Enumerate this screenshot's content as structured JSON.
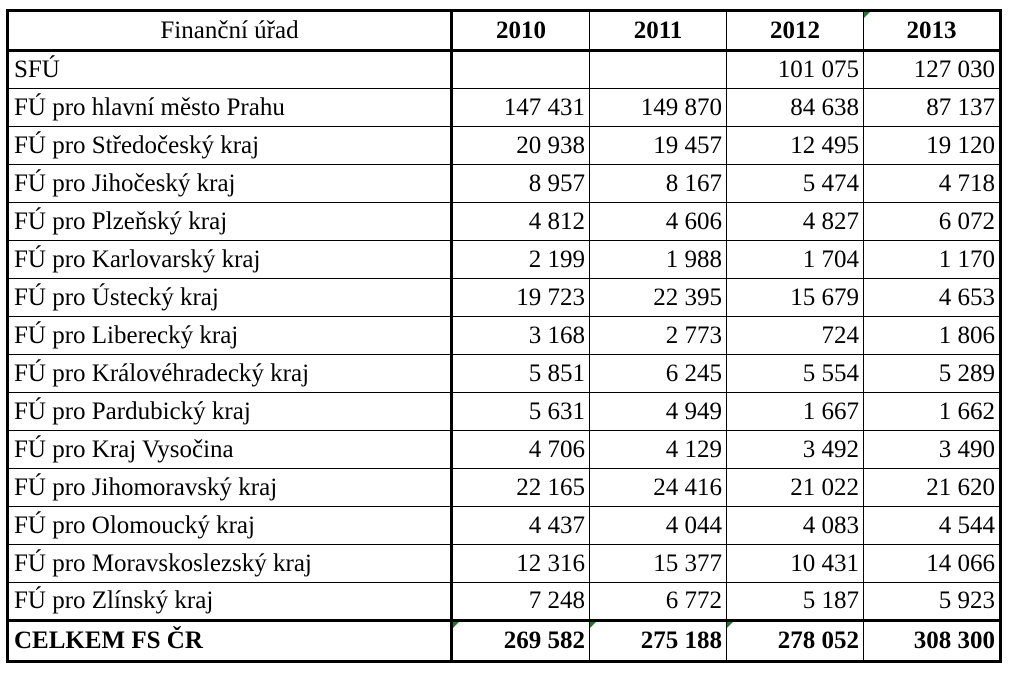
{
  "table": {
    "headers": [
      "Finanční úřad",
      "2010",
      "2011",
      "2012",
      "2013"
    ],
    "rows": [
      {
        "name": "SFÚ",
        "values": [
          "",
          "",
          "101 075",
          "127 030"
        ]
      },
      {
        "name": "FÚ pro hlavní město Prahu",
        "values": [
          "147 431",
          "149 870",
          "84 638",
          "87 137"
        ]
      },
      {
        "name": "FÚ pro Středočeský kraj",
        "values": [
          "20 938",
          "19 457",
          "12 495",
          "19 120"
        ]
      },
      {
        "name": "FÚ pro Jihočeský kraj",
        "values": [
          "8 957",
          "8 167",
          "5 474",
          "4 718"
        ]
      },
      {
        "name": "FÚ pro Plzeňský kraj",
        "values": [
          "4 812",
          "4 606",
          "4 827",
          "6 072"
        ]
      },
      {
        "name": "FÚ pro Karlovarský kraj",
        "values": [
          "2 199",
          "1 988",
          "1 704",
          "1 170"
        ]
      },
      {
        "name": "FÚ pro Ústecký kraj",
        "values": [
          "19 723",
          "22 395",
          "15 679",
          "4 653"
        ]
      },
      {
        "name": "FÚ pro Liberecký kraj",
        "values": [
          "3 168",
          "2 773",
          "724",
          "1 806"
        ]
      },
      {
        "name": "FÚ pro Královéhradecký kraj",
        "values": [
          "5 851",
          "6 245",
          "5 554",
          "5 289"
        ]
      },
      {
        "name": "FÚ pro Pardubický kraj",
        "values": [
          "5 631",
          "4 949",
          "1 667",
          "1 662"
        ]
      },
      {
        "name": "FÚ pro Kraj Vysočina",
        "values": [
          "4 706",
          "4 129",
          "3 492",
          "3 490"
        ]
      },
      {
        "name": "FÚ pro Jihomoravský kraj",
        "values": [
          "22 165",
          "24 416",
          "21 022",
          "21 620"
        ]
      },
      {
        "name": "FÚ pro Olomoucký kraj",
        "values": [
          "4 437",
          "4 044",
          "4 083",
          "4 544"
        ]
      },
      {
        "name": "FÚ pro Moravskoslezský kraj",
        "values": [
          "12 316",
          "15 377",
          "10 431",
          "14 066"
        ]
      },
      {
        "name": "FÚ pro Zlínský kraj",
        "values": [
          "7 248",
          "6 772",
          "5 187",
          "5 923"
        ]
      }
    ],
    "total": {
      "name": "CELKEM FS ČR",
      "values": [
        "269 582",
        "275 188",
        "278 052",
        "308 300"
      ]
    }
  },
  "colors": {
    "cell_marker": "#1e7a2e",
    "border": "#000000"
  }
}
